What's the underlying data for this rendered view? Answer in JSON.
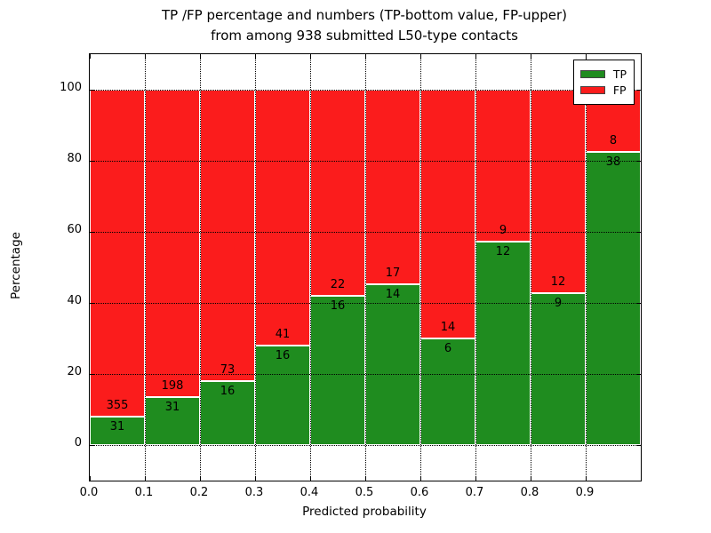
{
  "title": {
    "line1": "TP /FP percentage and numbers (TP-bottom value, FP-upper)",
    "line2": "from among 938 submitted L50-type contacts"
  },
  "axes": {
    "xlabel": "Predicted probability",
    "ylabel": "Percentage",
    "x_tick_labels": [
      "0.0",
      "0.1",
      "0.2",
      "0.3",
      "0.4",
      "0.5",
      "0.6",
      "0.7",
      "0.8",
      "0.9"
    ],
    "y_tick_labels": [
      "0",
      "20",
      "40",
      "60",
      "80",
      "100"
    ],
    "y_tick_values": [
      0,
      20,
      40,
      60,
      80,
      100
    ]
  },
  "legend": [
    {
      "label": "TP",
      "color": "#1f8c1f"
    },
    {
      "label": "FP",
      "color": "#fb1c1c"
    }
  ],
  "colors": {
    "tp": "#1f8c1f",
    "fp": "#fb1c1c",
    "grid": "#000000",
    "text": "#000000"
  },
  "chart_data": {
    "type": "bar",
    "stacked": true,
    "normalized_to": 100,
    "title": "TP /FP percentage and numbers (TP-bottom value, FP-upper) from among 938 submitted L50-type contacts",
    "xlabel": "Predicted probability",
    "ylabel": "Percentage",
    "xlim": [
      0.0,
      1.0
    ],
    "ylim": [
      -10,
      110
    ],
    "bin_width": 0.1,
    "grid": true,
    "legend_position": "upper right",
    "categories": [
      "0.0-0.1",
      "0.1-0.2",
      "0.2-0.3",
      "0.3-0.4",
      "0.4-0.5",
      "0.5-0.6",
      "0.6-0.7",
      "0.7-0.8",
      "0.8-0.9",
      "0.9-1.0"
    ],
    "series": [
      {
        "name": "TP",
        "counts": [
          31,
          31,
          16,
          16,
          16,
          14,
          6,
          12,
          9,
          38
        ]
      },
      {
        "name": "FP",
        "counts": [
          355,
          198,
          73,
          41,
          22,
          17,
          14,
          9,
          12,
          8
        ]
      }
    ],
    "tp_percent": [
      8.0,
      13.5,
      18.0,
      28.1,
      42.1,
      45.2,
      30.0,
      57.1,
      42.9,
      82.6
    ],
    "total_contacts": 938
  }
}
